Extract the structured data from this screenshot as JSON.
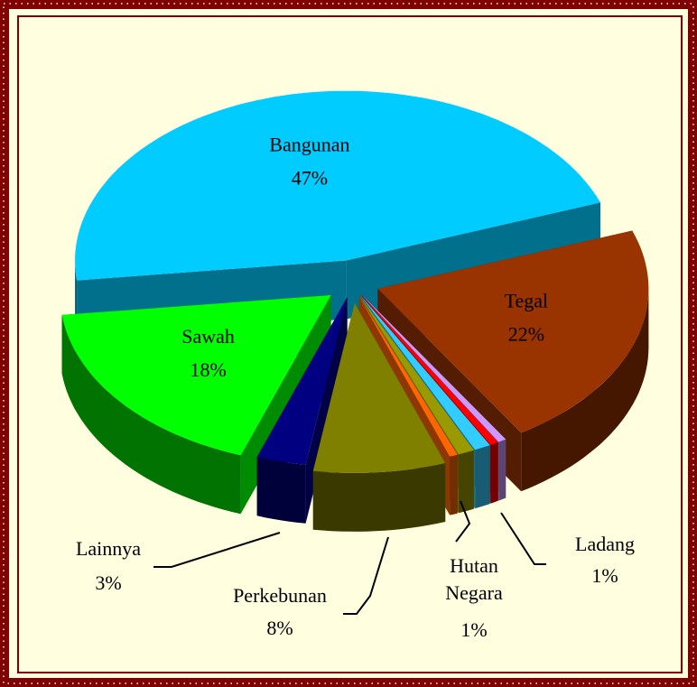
{
  "chart_data": {
    "type": "pie3d",
    "categories": [
      "Bangunan",
      "Tegal",
      null,
      null,
      "Ladang",
      "Hutan Negara",
      null,
      "Perkebunan",
      "Lainnya",
      "Sawah"
    ],
    "values": [
      47,
      22,
      0.5,
      0.5,
      1,
      1,
      0.5,
      8,
      3,
      18
    ],
    "value_labels": [
      "47%",
      "22%",
      null,
      null,
      "1%",
      "1%",
      null,
      "8%",
      "3%",
      "18%"
    ],
    "colors": [
      "#00ccff",
      "#993300",
      "#cc99ff",
      "#ff0000",
      "#33ccff",
      "#999900",
      "#ff6600",
      "#808000",
      "#000080",
      "#00ff00"
    ]
  }
}
